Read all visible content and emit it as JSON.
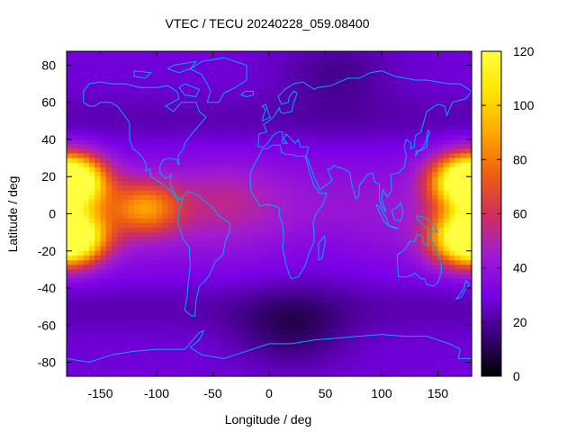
{
  "chart_data": {
    "type": "heatmap",
    "title": "VTEC / TECU 20240228_059.08400",
    "xlabel": "Longitude / deg",
    "ylabel": "Latitude / deg",
    "xlim": [
      -180,
      180
    ],
    "ylim": [
      -87.5,
      87.5
    ],
    "x_ticks": [
      {
        "value": -150,
        "label": "-150"
      },
      {
        "value": -100,
        "label": "-100"
      },
      {
        "value": -50,
        "label": "-50"
      },
      {
        "value": 0,
        "label": "0"
      },
      {
        "value": 50,
        "label": "50"
      },
      {
        "value": 100,
        "label": "100"
      },
      {
        "value": 150,
        "label": "150"
      }
    ],
    "y_ticks": [
      {
        "value": 80,
        "label": "80"
      },
      {
        "value": 60,
        "label": "60"
      },
      {
        "value": 40,
        "label": "40"
      },
      {
        "value": 20,
        "label": "20"
      },
      {
        "value": 0,
        "label": "0"
      },
      {
        "value": -20,
        "label": "-20"
      },
      {
        "value": -40,
        "label": "-40"
      },
      {
        "value": -60,
        "label": "-60"
      },
      {
        "value": -80,
        "label": "-80"
      }
    ],
    "colorbar": {
      "min": 0,
      "max": 120,
      "ticks": [
        {
          "value": 0,
          "label": "0"
        },
        {
          "value": 20,
          "label": "20"
        },
        {
          "value": 40,
          "label": "40"
        },
        {
          "value": 60,
          "label": "60"
        },
        {
          "value": 80,
          "label": "80"
        },
        {
          "value": 100,
          "label": "100"
        },
        {
          "value": 120,
          "label": "120"
        }
      ],
      "palette": [
        "#000000",
        "#3a0078",
        "#7a00e8",
        "#a01cd0",
        "#d0305a",
        "#f06010",
        "#ffa800",
        "#ffe400",
        "#ffff40"
      ]
    },
    "grid": {
      "lon_step": 5,
      "lat_step": 2.5,
      "background_tec": 28,
      "features": [
        {
          "name": "pacific-crest-north",
          "lon": -177,
          "lat": 17,
          "value": 85
        },
        {
          "name": "pacific-crest-south",
          "lon": -177,
          "lat": -12,
          "value": 82
        },
        {
          "name": "pacific-band-east",
          "lon": -110,
          "lat": 3,
          "value": 45
        },
        {
          "name": "western-pacific-north",
          "lon": 175,
          "lat": 18,
          "value": 52
        },
        {
          "name": "western-pacific-south",
          "lon": 175,
          "lat": -14,
          "value": 50
        },
        {
          "name": "south-america-arc",
          "lon": -40,
          "lat": 8,
          "value": 12
        },
        {
          "name": "polar-north-depletion",
          "lon": 60,
          "lat": 75,
          "value": -10
        },
        {
          "name": "southern-depletion",
          "lon": 20,
          "lat": -62,
          "value": -15
        },
        {
          "name": "africa-depletion",
          "lon": 50,
          "lat": -20,
          "value": -4
        }
      ]
    },
    "coastline_color": "#00a8ff"
  }
}
